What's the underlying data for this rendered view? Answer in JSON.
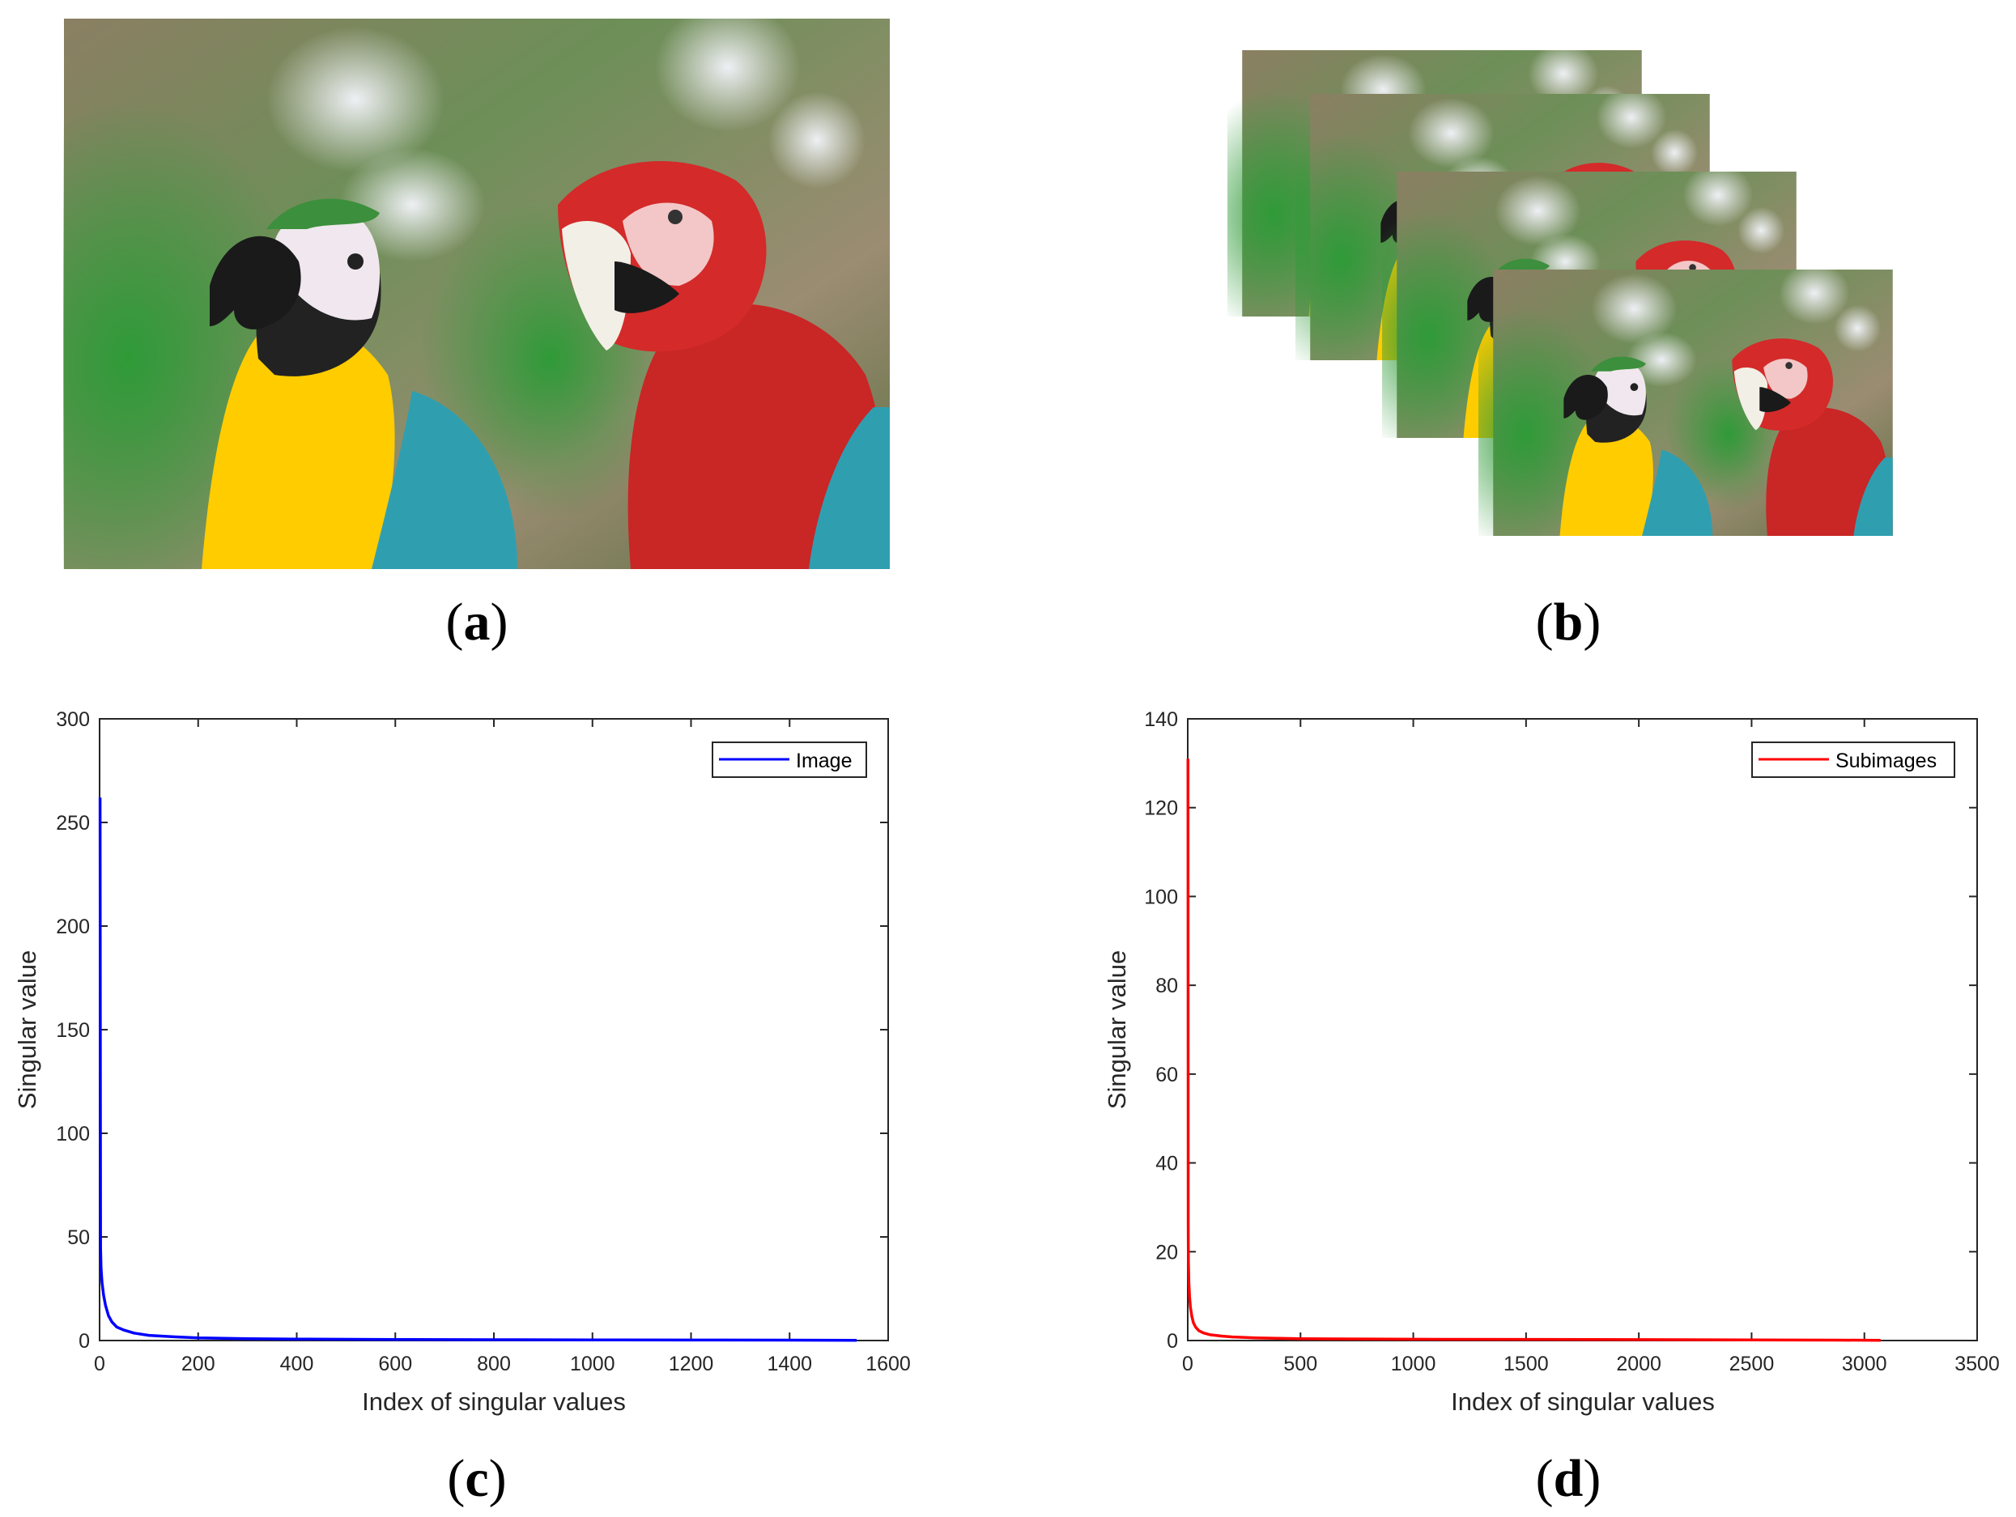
{
  "panels": {
    "a": {
      "open": "(",
      "letter": "a",
      "close": ")"
    },
    "b": {
      "open": "(",
      "letter": "b",
      "close": ")"
    },
    "c": {
      "open": "(",
      "letter": "c",
      "close": ")"
    },
    "d": {
      "open": "(",
      "letter": "d",
      "close": ")"
    }
  },
  "images": {
    "a": {
      "name": "parrots-photo"
    },
    "b": {
      "name": "parrots-subimages-stack",
      "count": 4
    }
  },
  "colors": {
    "image_series": "#0000ff",
    "subimages_series": "#ff0000",
    "axis": "#262626",
    "background": "#b7c3a3"
  },
  "chart_data": [
    {
      "type": "line",
      "panel": "c",
      "title": "",
      "xlabel": "Index of singular values",
      "ylabel": "Singular value",
      "xlim": [
        0,
        1600
      ],
      "ylim": [
        0,
        300
      ],
      "xticks": [
        "0",
        "200",
        "400",
        "600",
        "800",
        "1000",
        "1200",
        "1400",
        "1600"
      ],
      "yticks": [
        "0",
        "50",
        "100",
        "150",
        "200",
        "250",
        "300"
      ],
      "legend_position": "top-right",
      "series": [
        {
          "name": "Image",
          "color": "#0000ff",
          "x": [
            1,
            2,
            3,
            5,
            8,
            12,
            18,
            25,
            35,
            50,
            70,
            100,
            150,
            200,
            300,
            400,
            600,
            800,
            1000,
            1200,
            1400,
            1536
          ],
          "y": [
            262,
            45,
            35,
            28,
            22,
            17,
            12,
            9,
            6.5,
            5,
            3.6,
            2.5,
            1.8,
            1.3,
            0.9,
            0.7,
            0.5,
            0.4,
            0.3,
            0.25,
            0.2,
            0.1
          ]
        }
      ]
    },
    {
      "type": "line",
      "panel": "d",
      "title": "",
      "xlabel": "Index of singular values",
      "ylabel": "Singular value",
      "xlim": [
        0,
        3500
      ],
      "ylim": [
        0,
        140
      ],
      "xticks": [
        "0",
        "500",
        "1000",
        "1500",
        "2000",
        "2500",
        "3000",
        "3500"
      ],
      "yticks": [
        "0",
        "20",
        "40",
        "60",
        "80",
        "100",
        "120",
        "140"
      ],
      "legend_position": "top-right",
      "series": [
        {
          "name": "Subimages",
          "color": "#ff0000",
          "x": [
            1,
            2,
            3,
            5,
            8,
            12,
            18,
            25,
            35,
            50,
            70,
            100,
            150,
            200,
            300,
            500,
            1000,
            1500,
            2000,
            2500,
            2880,
            3072
          ],
          "y": [
            131,
            26,
            18,
            13,
            10,
            7.5,
            5.5,
            4,
            3,
            2.2,
            1.7,
            1.3,
            1,
            0.8,
            0.6,
            0.4,
            0.3,
            0.25,
            0.2,
            0.15,
            0.1,
            0.05
          ]
        }
      ]
    }
  ]
}
